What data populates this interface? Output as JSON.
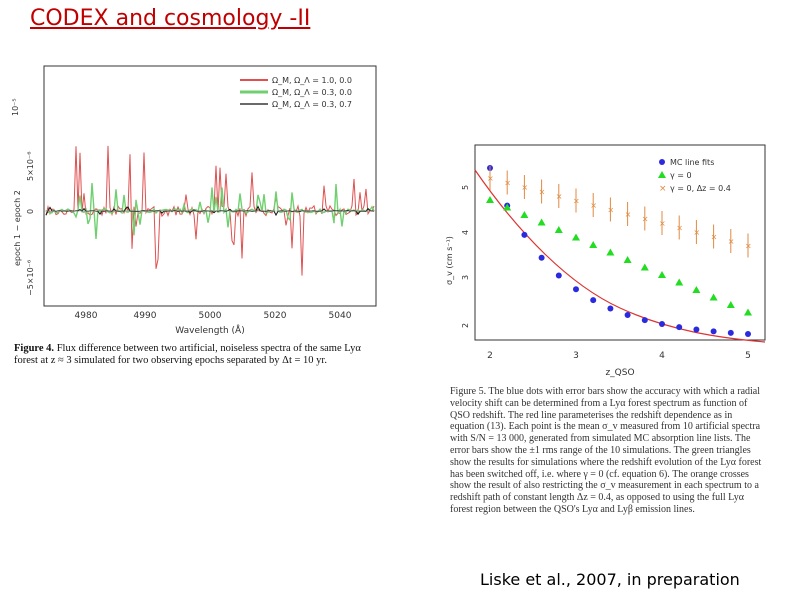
{
  "slide": {
    "title": "CODEX and cosmology -II",
    "credit": "Liske et al., 2007, in preparation"
  },
  "figure1": {
    "legend": [
      "Ω_M, Ω_Λ = 1.0, 0.0",
      "Ω_M, Ω_Λ = 0.3, 0.0",
      "Ω_M, Ω_Λ = 0.3, 0.7"
    ],
    "legend_colors": [
      "#e05050",
      "#70d070",
      "#111111"
    ],
    "ylabel": "epoch 1 − epoch 2",
    "y_ticks": [
      "10⁻⁵",
      "5×10⁻⁶",
      "0",
      "−5×10⁻⁶"
    ],
    "x_ticks": [
      "4980",
      "4990",
      "5000",
      "5020",
      "5040"
    ],
    "xlabel": "Wavelength (Å)",
    "caption_head": "Figure 4.",
    "caption": "Flux difference between two artificial, noiseless spectra of the same Lyα forest at z ≈ 3 simulated for two observing epochs separated by Δt = 10 yr."
  },
  "figure2": {
    "legend": [
      "MC line fits",
      "γ = 0",
      "γ = 0, Δz = 0.4"
    ],
    "legend_colors": [
      "#2a2adf",
      "#22dd22",
      "#e08a40"
    ],
    "ylabel": "σ_v (cm s⁻¹)",
    "xlabel": "z_QSO",
    "x_ticks": [
      "2",
      "3",
      "4",
      "5"
    ],
    "y_ticks": [
      "2",
      "3",
      "4",
      "5"
    ],
    "caption": "Figure 5. The blue dots with error bars show the accuracy with which a radial velocity shift can be determined from a Lyα forest spectrum as function of QSO redshift. The red line parameterises the redshift dependence as in equation (13). Each point is the mean σ_v measured from 10 artificial spectra with S/N = 13 000, generated from simulated MC absorption line lists. The error bars show the ±1 rms range of the 10 simulations. The green triangles show the results for simulations where the redshift evolution of the Lyα forest has been switched off, i.e. where γ = 0 (cf. equation 6). The orange crosses show the result of also restricting the σ_v measurement in each spectrum to a redshift path of constant length Δz = 0.4, as opposed to using the full Lyα forest region between the QSO's Lyα and Lyβ emission lines."
  }
}
